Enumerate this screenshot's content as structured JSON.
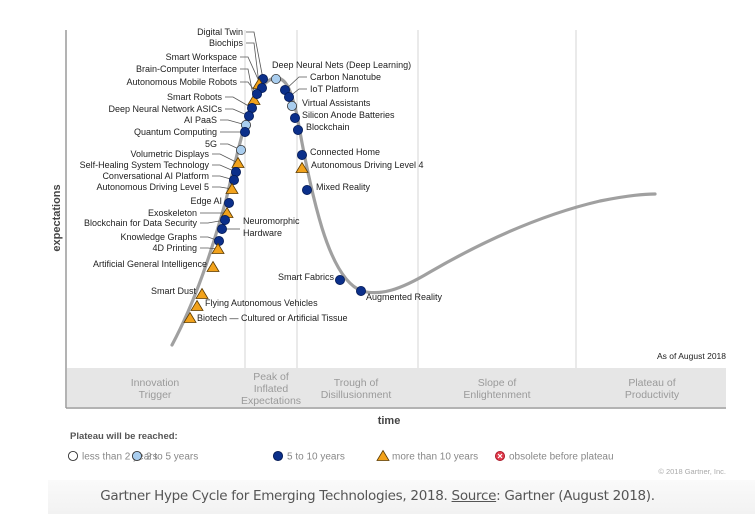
{
  "chart_data": {
    "type": "scatter",
    "title": "Gartner Hype Cycle for Emerging Technologies, 2018",
    "xlabel": "time",
    "ylabel": "expectations",
    "as_of": "As of August 2018",
    "copyright": "© 2018 Gartner, Inc.",
    "phases": [
      {
        "label": [
          "Innovation",
          "Trigger"
        ]
      },
      {
        "label": [
          "Peak of",
          "Inflated",
          "Expectations"
        ]
      },
      {
        "label": [
          "Trough of",
          "Disillusionment"
        ]
      },
      {
        "label": [
          "Slope of",
          "Enlightenment"
        ]
      },
      {
        "label": [
          "Plateau of",
          "Productivity"
        ]
      }
    ],
    "legend": {
      "title": "Plateau will be reached:",
      "items": [
        {
          "key": "lt2",
          "label": "less than 2 years",
          "marker": "circle",
          "color": "#ffffff"
        },
        {
          "key": "2to5",
          "label": "2 to 5 years",
          "marker": "circle",
          "color": "#a9cdee"
        },
        {
          "key": "5to10",
          "label": "5 to 10 years",
          "marker": "circle",
          "color": "#0b2f8a"
        },
        {
          "key": "gt10",
          "label": "more than 10 years",
          "marker": "triangle",
          "color": "#f2a21b"
        },
        {
          "key": "obsolete",
          "label": "obsolete before plateau",
          "marker": "x-circle",
          "color": "#e0394a"
        }
      ]
    },
    "technologies": [
      {
        "name": "Digital Twin",
        "phase": "Peak of Inflated Expectations",
        "plateau": "5to10"
      },
      {
        "name": "Biochips",
        "phase": "Peak of Inflated Expectations",
        "plateau": "gt10"
      },
      {
        "name": "Smart Workspace",
        "phase": "Peak of Inflated Expectations",
        "plateau": "5to10"
      },
      {
        "name": "Brain-Computer Interface",
        "phase": "Peak of Inflated Expectations",
        "plateau": "gt10"
      },
      {
        "name": "Autonomous Mobile Robots",
        "phase": "Peak of Inflated Expectations",
        "plateau": "5to10"
      },
      {
        "name": "Smart Robots",
        "phase": "Peak of Inflated Expectations",
        "plateau": "5to10"
      },
      {
        "name": "Deep Neural Network ASICs",
        "phase": "Peak of Inflated Expectations",
        "plateau": "5to10"
      },
      {
        "name": "AI PaaS",
        "phase": "Innovation Trigger",
        "plateau": "2to5"
      },
      {
        "name": "Quantum Computing",
        "phase": "Innovation Trigger",
        "plateau": "5to10"
      },
      {
        "name": "5G",
        "phase": "Innovation Trigger",
        "plateau": "2to5"
      },
      {
        "name": "Volumetric Displays",
        "phase": "Innovation Trigger",
        "plateau": "gt10"
      },
      {
        "name": "Self-Healing System Technology",
        "phase": "Innovation Trigger",
        "plateau": "5to10"
      },
      {
        "name": "Conversational AI Platform",
        "phase": "Innovation Trigger",
        "plateau": "5to10"
      },
      {
        "name": "Autonomous Driving Level 5",
        "phase": "Innovation Trigger",
        "plateau": "gt10"
      },
      {
        "name": "Edge AI",
        "phase": "Innovation Trigger",
        "plateau": "5to10"
      },
      {
        "name": "Exoskeleton",
        "phase": "Innovation Trigger",
        "plateau": "gt10"
      },
      {
        "name": "Blockchain for Data Security",
        "phase": "Innovation Trigger",
        "plateau": "5to10"
      },
      {
        "name": "Neuromorphic Hardware",
        "phase": "Innovation Trigger",
        "plateau": "5to10"
      },
      {
        "name": "Knowledge Graphs",
        "phase": "Innovation Trigger",
        "plateau": "5to10"
      },
      {
        "name": "4D Printing",
        "phase": "Innovation Trigger",
        "plateau": "gt10"
      },
      {
        "name": "Artificial General Intelligence",
        "phase": "Innovation Trigger",
        "plateau": "gt10"
      },
      {
        "name": "Smart Dust",
        "phase": "Innovation Trigger",
        "plateau": "gt10"
      },
      {
        "name": "Flying Autonomous Vehicles",
        "phase": "Innovation Trigger",
        "plateau": "gt10"
      },
      {
        "name": "Biotech — Cultured or Artificial Tissue",
        "phase": "Innovation Trigger",
        "plateau": "gt10"
      },
      {
        "name": "Deep Neural Nets (Deep Learning)",
        "phase": "Peak of Inflated Expectations",
        "plateau": "2to5"
      },
      {
        "name": "Carbon Nanotube",
        "phase": "Peak of Inflated Expectations",
        "plateau": "5to10"
      },
      {
        "name": "IoT Platform",
        "phase": "Peak of Inflated Expectations",
        "plateau": "5to10"
      },
      {
        "name": "Virtual Assistants",
        "phase": "Peak of Inflated Expectations",
        "plateau": "2to5"
      },
      {
        "name": "Silicon Anode Batteries",
        "phase": "Peak of Inflated Expectations",
        "plateau": "5to10"
      },
      {
        "name": "Blockchain",
        "phase": "Peak of Inflated Expectations",
        "plateau": "5to10"
      },
      {
        "name": "Connected Home",
        "phase": "Trough of Disillusionment",
        "plateau": "5to10"
      },
      {
        "name": "Autonomous Driving Level 4",
        "phase": "Trough of Disillusionment",
        "plateau": "gt10"
      },
      {
        "name": "Mixed Reality",
        "phase": "Trough of Disillusionment",
        "plateau": "5to10"
      },
      {
        "name": "Smart Fabrics",
        "phase": "Trough of Disillusionment",
        "plateau": "5to10"
      },
      {
        "name": "Augmented Reality",
        "phase": "Trough of Disillusionment",
        "plateau": "5to10"
      }
    ]
  },
  "caption": {
    "prefix": "Gartner Hype Cycle for Emerging Technologies, 2018. ",
    "source_link": "Source",
    "suffix": ": Gartner (August 2018)."
  }
}
